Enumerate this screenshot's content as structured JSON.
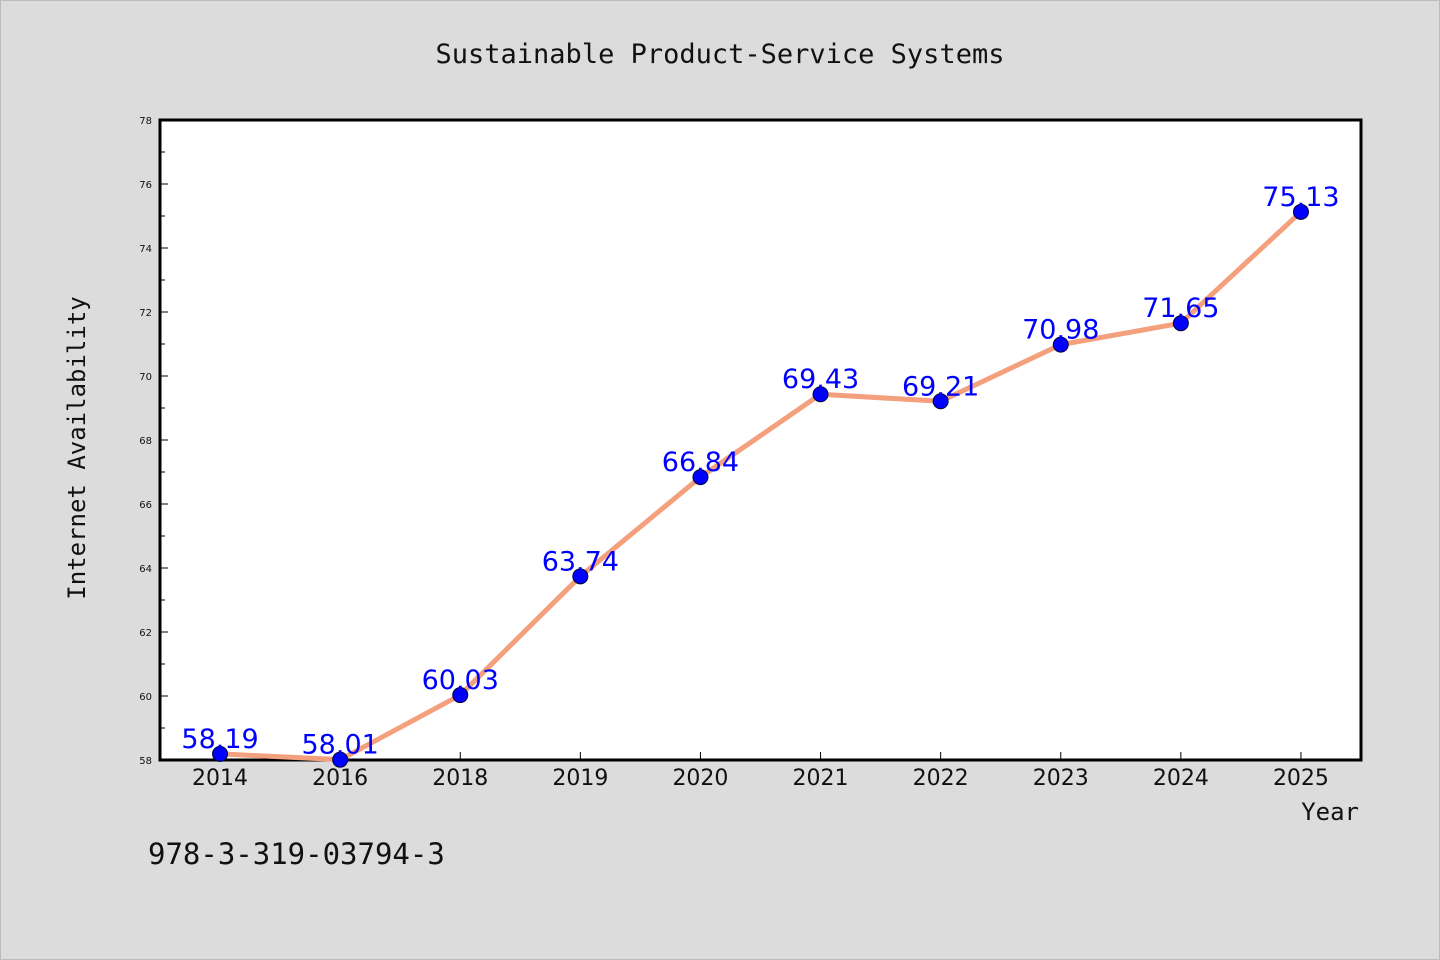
{
  "chart_data": {
    "type": "line",
    "title": "Sustainable Product-Service Systems",
    "xlabel": "Year",
    "ylabel": "Internet Availability",
    "categories": [
      "2014",
      "2016",
      "2018",
      "2019",
      "2020",
      "2021",
      "2022",
      "2023",
      "2024",
      "2025"
    ],
    "series": [
      {
        "values": [
          58.19,
          58.01,
          60.03,
          63.74,
          66.84,
          69.43,
          69.21,
          70.98,
          71.65,
          75.13
        ],
        "labels": [
          "58.19",
          "58.01",
          "60.03",
          "63.74",
          "66.84",
          "69.43",
          "69.21",
          "70.98",
          "71.65",
          "75.13"
        ]
      }
    ],
    "ylim": [
      58,
      78
    ],
    "yticks": [
      "58",
      "60",
      "62",
      "64",
      "66",
      "68",
      "70",
      "72",
      "74",
      "76",
      "78"
    ],
    "grid": false,
    "colors": {
      "line": "#f4a07c",
      "marker": "#0000ff",
      "label": "#0000ff",
      "background": "#dcdcdc",
      "plot_bg": "#ffffff"
    }
  },
  "footer": {
    "isbn": "978-3-319-03794-3"
  }
}
